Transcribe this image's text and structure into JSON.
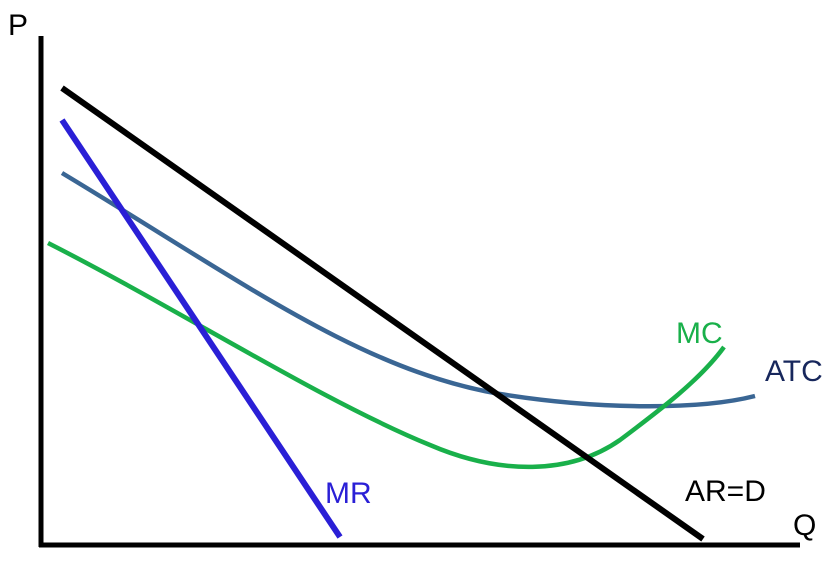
{
  "axes": {
    "y_label": "P",
    "x_label": "Q"
  },
  "curves": {
    "demand": {
      "label": "AR=D",
      "color": "#000000"
    },
    "mr": {
      "label": "MR",
      "color": "#2a1fd6"
    },
    "atc": {
      "label": "ATC",
      "color": "#3a6694"
    },
    "mc": {
      "label": "MC",
      "color": "#19b04a"
    }
  }
}
